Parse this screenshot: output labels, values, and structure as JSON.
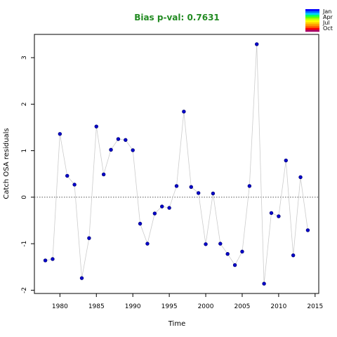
{
  "chart_data": {
    "type": "scatter",
    "title": "Bias p-val: 0.7631",
    "title_color": "#228B22",
    "xlabel": "Time",
    "ylabel": "Catch OSA residuals",
    "xlim": [
      1976.5,
      2015.5
    ],
    "ylim": [
      -2.07,
      3.5
    ],
    "x_ticks": [
      1980,
      1985,
      1990,
      1995,
      2000,
      2005,
      2010,
      2015
    ],
    "y_ticks": [
      -2,
      -1,
      0,
      1,
      2,
      3
    ],
    "reference_line": 0,
    "line_color": "#cccccc",
    "point_color": "#0000cc",
    "point_edge_color": "#000066",
    "series": [
      {
        "x": [
          1978,
          1979,
          1980,
          1981,
          1982,
          1983,
          1984,
          1985,
          1986,
          1987,
          1988,
          1989,
          1990,
          1991,
          1992,
          1993,
          1994,
          1995,
          1996,
          1997,
          1998,
          1999,
          2000,
          2001,
          2002,
          2003,
          2004,
          2005,
          2006,
          2007,
          2008,
          2009,
          2010,
          2011,
          2012,
          2013,
          2014
        ],
        "y": [
          -1.36,
          -1.33,
          1.36,
          0.46,
          0.27,
          -1.74,
          -0.88,
          1.52,
          0.49,
          1.02,
          1.25,
          1.23,
          1.01,
          -0.57,
          -1.0,
          -0.35,
          -0.2,
          -0.23,
          0.24,
          1.84,
          0.22,
          0.09,
          -1.01,
          0.08,
          -1.0,
          -1.22,
          -1.46,
          -1.17,
          0.24,
          3.29,
          -1.86,
          -0.34,
          -0.41,
          0.79,
          -1.25,
          0.43,
          -0.71
        ]
      }
    ],
    "legend": {
      "placement": "top-right",
      "labels": [
        "Jan",
        "Apr",
        "Jul",
        "Oct"
      ],
      "colors": [
        "#0000ff",
        "#0066ff",
        "#00ccff",
        "#00ff66",
        "#66ff00",
        "#ccff00",
        "#ffff00",
        "#ffcc00",
        "#ff9900",
        "#ff6600",
        "#ff0000",
        "#aa0066"
      ]
    }
  }
}
